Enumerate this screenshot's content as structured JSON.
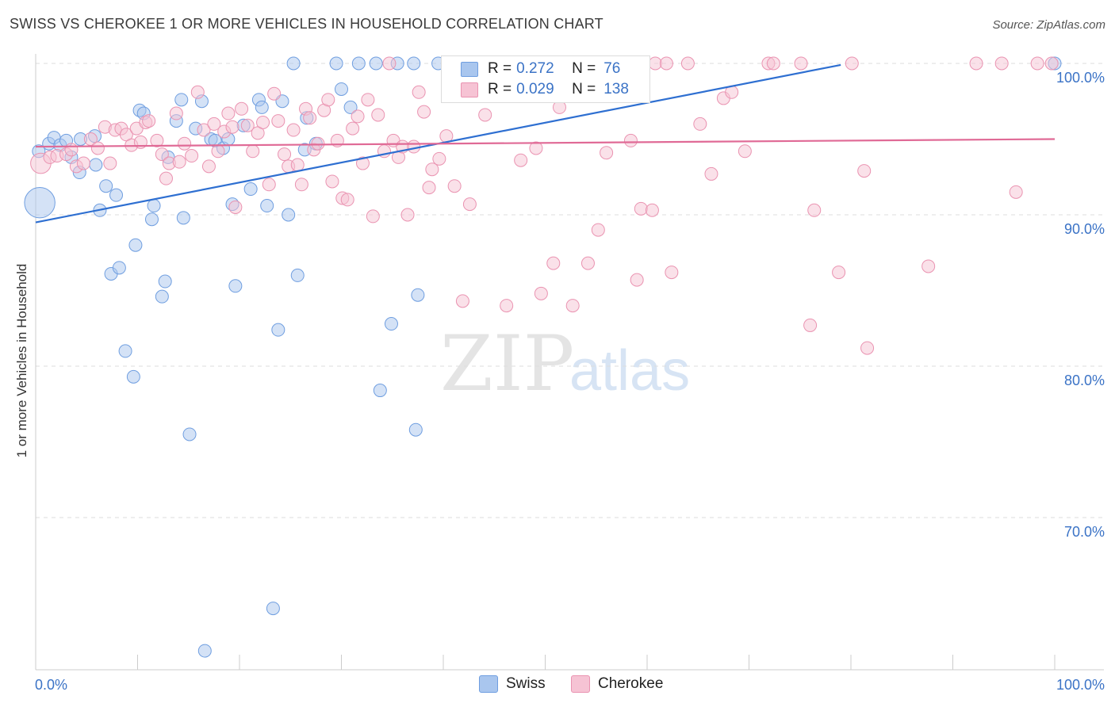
{
  "chart_data": {
    "type": "scatter",
    "title": "SWISS VS CHEROKEE 1 OR MORE VEHICLES IN HOUSEHOLD CORRELATION CHART",
    "source": "Source: ZipAtlas.com",
    "xlabel": "",
    "ylabel": "1 or more Vehicles in Household",
    "xlim": [
      0,
      100
    ],
    "ylim": [
      60.0,
      101.5
    ],
    "x_tick_labels": {
      "left": "0.0%",
      "right": "100.0%"
    },
    "y_ticks": [
      {
        "value": 100,
        "label": "100.0%"
      },
      {
        "value": 90,
        "label": "90.0%"
      },
      {
        "value": 80,
        "label": "80.0%"
      },
      {
        "value": 70,
        "label": "70.0%"
      }
    ],
    "grid": true,
    "watermark": {
      "part1": "ZIP",
      "part2": "atlas"
    },
    "legend": {
      "r_label": "R =",
      "n_label": "N =",
      "entries": [
        {
          "name": "Swiss",
          "r": "0.272",
          "n": "76"
        },
        {
          "name": "Cherokee",
          "r": "0.029",
          "n": "138"
        }
      ]
    },
    "series": [
      {
        "name": "Swiss",
        "color": "#6f9ee0",
        "fill": "#a9c6ee",
        "trend": {
          "x1": 0,
          "y1": 89.5,
          "x2": 79,
          "y2": 99.9,
          "color": "#2e6fd1"
        },
        "points": [
          [
            0.3,
            94.2,
            1
          ],
          [
            0.4,
            90.8,
            2.4
          ],
          [
            1.3,
            94.7,
            1
          ],
          [
            1.8,
            95.1,
            1
          ],
          [
            2.4,
            94.6,
            1
          ],
          [
            3.0,
            94.9,
            1
          ],
          [
            3.5,
            93.8,
            1
          ],
          [
            4.3,
            92.8,
            1
          ],
          [
            4.4,
            95.0,
            1
          ],
          [
            5.8,
            95.2,
            1
          ],
          [
            5.9,
            93.3,
            1
          ],
          [
            6.3,
            90.3,
            1
          ],
          [
            6.9,
            91.9,
            1
          ],
          [
            7.4,
            86.1,
            1
          ],
          [
            7.9,
            91.3,
            1
          ],
          [
            8.2,
            86.5,
            1
          ],
          [
            8.8,
            81.0,
            1
          ],
          [
            9.6,
            79.3,
            1
          ],
          [
            9.8,
            88.0,
            1
          ],
          [
            10.2,
            96.9,
            1
          ],
          [
            10.6,
            96.7,
            1
          ],
          [
            11.4,
            89.7,
            1
          ],
          [
            11.6,
            90.6,
            1
          ],
          [
            12.4,
            84.6,
            1
          ],
          [
            12.7,
            85.6,
            1
          ],
          [
            13.0,
            93.8,
            1
          ],
          [
            13.8,
            96.2,
            1
          ],
          [
            14.3,
            97.6,
            1
          ],
          [
            14.5,
            89.8,
            1
          ],
          [
            15.1,
            75.5,
            1
          ],
          [
            15.7,
            95.7,
            1
          ],
          [
            16.3,
            97.5,
            1
          ],
          [
            16.6,
            61.2,
            1
          ],
          [
            17.2,
            95.0,
            1
          ],
          [
            17.6,
            94.9,
            1
          ],
          [
            18.4,
            94.4,
            1
          ],
          [
            18.9,
            95.0,
            1
          ],
          [
            19.3,
            90.7,
            1
          ],
          [
            19.6,
            85.3,
            1
          ],
          [
            20.4,
            95.9,
            1
          ],
          [
            21.1,
            91.7,
            1
          ],
          [
            21.9,
            97.6,
            1
          ],
          [
            22.2,
            97.1,
            1
          ],
          [
            22.7,
            90.6,
            1
          ],
          [
            23.3,
            64.0,
            1
          ],
          [
            23.8,
            82.4,
            1
          ],
          [
            24.2,
            97.5,
            1
          ],
          [
            24.8,
            90.0,
            1
          ],
          [
            25.3,
            100,
            1
          ],
          [
            25.7,
            86.0,
            1
          ],
          [
            26.4,
            94.3,
            1
          ],
          [
            26.6,
            96.4,
            1
          ],
          [
            27.5,
            94.7,
            1
          ],
          [
            29.5,
            100,
            1
          ],
          [
            30.0,
            98.3,
            1
          ],
          [
            30.9,
            97.1,
            1
          ],
          [
            31.7,
            100,
            1
          ],
          [
            33.4,
            100,
            1
          ],
          [
            33.8,
            78.4,
            1
          ],
          [
            34.9,
            82.8,
            1
          ],
          [
            35.5,
            100,
            1
          ],
          [
            37.1,
            100,
            1
          ],
          [
            37.3,
            75.8,
            1
          ],
          [
            37.5,
            84.7,
            1
          ],
          [
            39.5,
            100,
            1
          ],
          [
            41.8,
            100,
            1
          ],
          [
            100,
            100,
            1
          ]
        ]
      },
      {
        "name": "Cherokee",
        "color": "#ea93b1",
        "fill": "#f6c3d4",
        "trend": {
          "x1": 0,
          "y1": 94.5,
          "x2": 100,
          "y2": 95.0,
          "color": "#e06a96"
        },
        "points": [
          [
            0.5,
            93.4,
            1.6
          ],
          [
            1.4,
            93.8,
            1
          ],
          [
            2.1,
            93.9,
            1
          ],
          [
            3.0,
            94.0,
            1
          ],
          [
            3.5,
            94.3,
            1
          ],
          [
            4.0,
            93.2,
            1
          ],
          [
            4.7,
            93.4,
            1
          ],
          [
            5.4,
            95.0,
            1
          ],
          [
            6.1,
            94.4,
            1
          ],
          [
            6.8,
            95.8,
            1
          ],
          [
            7.3,
            93.4,
            1
          ],
          [
            7.8,
            95.6,
            1
          ],
          [
            8.4,
            95.7,
            1
          ],
          [
            8.9,
            95.3,
            1
          ],
          [
            9.4,
            94.6,
            1
          ],
          [
            9.9,
            95.7,
            1
          ],
          [
            10.3,
            94.8,
            1
          ],
          [
            10.8,
            96.1,
            1
          ],
          [
            11.1,
            96.2,
            1
          ],
          [
            11.9,
            94.9,
            1
          ],
          [
            12.4,
            94.0,
            1
          ],
          [
            12.8,
            92.4,
            1
          ],
          [
            13.1,
            93.4,
            1
          ],
          [
            13.8,
            96.7,
            1
          ],
          [
            14.1,
            93.5,
            1
          ],
          [
            14.6,
            94.7,
            1
          ],
          [
            15.3,
            93.9,
            1
          ],
          [
            15.9,
            98.1,
            1
          ],
          [
            16.5,
            95.6,
            1
          ],
          [
            17.0,
            93.2,
            1
          ],
          [
            17.5,
            96.0,
            1
          ],
          [
            17.9,
            94.2,
            1
          ],
          [
            18.5,
            95.5,
            1
          ],
          [
            18.9,
            96.7,
            1
          ],
          [
            19.3,
            95.8,
            1
          ],
          [
            19.6,
            90.5,
            1
          ],
          [
            20.2,
            97.0,
            1
          ],
          [
            20.8,
            95.9,
            1
          ],
          [
            21.3,
            94.2,
            1
          ],
          [
            21.8,
            95.4,
            1
          ],
          [
            22.3,
            96.1,
            1
          ],
          [
            22.9,
            92.0,
            1
          ],
          [
            23.4,
            98.0,
            1
          ],
          [
            23.8,
            96.2,
            1
          ],
          [
            24.4,
            94.0,
            1
          ],
          [
            24.8,
            93.2,
            1
          ],
          [
            25.3,
            95.6,
            1
          ],
          [
            25.7,
            93.3,
            1
          ],
          [
            26.1,
            92.0,
            1
          ],
          [
            26.5,
            97.0,
            1
          ],
          [
            26.9,
            96.4,
            1
          ],
          [
            27.3,
            94.3,
            1
          ],
          [
            27.7,
            94.7,
            1
          ],
          [
            28.3,
            96.9,
            1
          ],
          [
            28.7,
            97.6,
            1
          ],
          [
            29.1,
            92.2,
            1
          ],
          [
            29.6,
            94.9,
            1
          ],
          [
            30.1,
            91.1,
            1
          ],
          [
            30.6,
            91.0,
            1
          ],
          [
            31.1,
            95.7,
            1
          ],
          [
            31.6,
            96.5,
            1
          ],
          [
            32.1,
            93.4,
            1
          ],
          [
            32.6,
            97.6,
            1
          ],
          [
            33.1,
            89.9,
            1
          ],
          [
            33.6,
            96.6,
            1
          ],
          [
            34.2,
            94.2,
            1
          ],
          [
            34.7,
            100,
            1
          ],
          [
            35.1,
            94.9,
            1
          ],
          [
            35.6,
            93.8,
            1
          ],
          [
            36.0,
            94.5,
            1
          ],
          [
            36.5,
            90.0,
            1
          ],
          [
            37.1,
            94.5,
            1
          ],
          [
            37.6,
            98.1,
            1
          ],
          [
            38.1,
            96.8,
            1
          ],
          [
            38.6,
            91.8,
            1
          ],
          [
            38.9,
            93.0,
            1
          ],
          [
            39.6,
            93.7,
            1
          ],
          [
            40.3,
            95.2,
            1
          ],
          [
            41.1,
            91.9,
            1
          ],
          [
            41.9,
            84.3,
            1
          ],
          [
            42.6,
            90.7,
            1
          ],
          [
            43.3,
            100,
            1
          ],
          [
            44.1,
            96.6,
            1
          ],
          [
            45.2,
            100,
            1
          ],
          [
            46.2,
            84.0,
            1
          ],
          [
            46.9,
            100,
            1
          ],
          [
            47.6,
            93.6,
            1
          ],
          [
            48.2,
            100,
            1
          ],
          [
            49.1,
            94.4,
            1
          ],
          [
            49.6,
            84.8,
            1
          ],
          [
            50.8,
            86.8,
            1
          ],
          [
            51.4,
            97.1,
            1
          ],
          [
            52.3,
            100,
            1
          ],
          [
            52.7,
            84.0,
            1
          ],
          [
            53.4,
            100,
            1
          ],
          [
            54.2,
            86.8,
            1
          ],
          [
            55.2,
            89.0,
            1
          ],
          [
            56.0,
            94.1,
            1
          ],
          [
            57.3,
            100,
            1
          ],
          [
            58.4,
            94.9,
            1
          ],
          [
            59.0,
            85.7,
            1
          ],
          [
            59.4,
            90.4,
            1
          ],
          [
            60.5,
            90.3,
            1
          ],
          [
            60.8,
            100,
            1
          ],
          [
            61.9,
            100,
            1
          ],
          [
            62.4,
            86.2,
            1
          ],
          [
            64.0,
            100,
            1
          ],
          [
            65.2,
            96.0,
            1
          ],
          [
            66.3,
            92.7,
            1
          ],
          [
            67.5,
            97.7,
            1
          ],
          [
            68.3,
            98.1,
            1
          ],
          [
            69.6,
            94.2,
            1
          ],
          [
            71.9,
            100,
            1
          ],
          [
            72.4,
            100,
            1
          ],
          [
            75.1,
            100,
            1
          ],
          [
            76.0,
            82.7,
            1
          ],
          [
            76.4,
            90.3,
            1
          ],
          [
            78.8,
            86.2,
            1
          ],
          [
            80.1,
            100,
            1
          ],
          [
            81.3,
            92.9,
            1
          ],
          [
            81.6,
            81.2,
            1
          ],
          [
            87.6,
            86.6,
            1
          ],
          [
            92.3,
            100,
            1
          ],
          [
            94.8,
            100,
            1
          ],
          [
            96.2,
            91.5,
            1
          ],
          [
            98.3,
            100,
            1
          ],
          [
            99.7,
            100,
            1
          ]
        ]
      }
    ]
  }
}
